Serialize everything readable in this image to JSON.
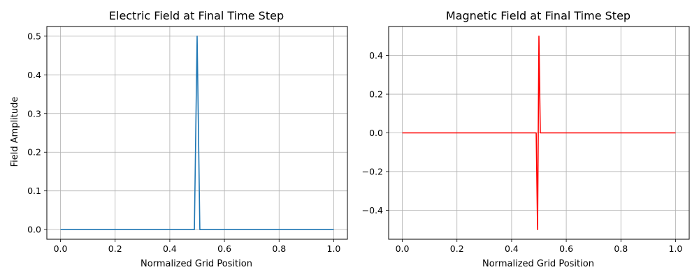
{
  "chart_data": [
    {
      "type": "line",
      "title": "Electric Field at Final Time Step",
      "xlabel": "Normalized Grid Position",
      "ylabel": "Field Amplitude",
      "xlim": [
        -0.05,
        1.05
      ],
      "ylim": [
        -0.025,
        0.525
      ],
      "xticks": [
        0.0,
        0.2,
        0.4,
        0.6,
        0.8,
        1.0
      ],
      "xtick_labels": [
        "0.0",
        "0.2",
        "0.4",
        "0.6",
        "0.8",
        "1.0"
      ],
      "yticks": [
        0.0,
        0.1,
        0.2,
        0.3,
        0.4,
        0.5
      ],
      "ytick_labels": [
        "0.0",
        "0.1",
        "0.2",
        "0.3",
        "0.4",
        "0.5"
      ],
      "grid": true,
      "series": [
        {
          "color": "#1f77b4",
          "x": [
            0.0,
            0.49,
            0.5,
            0.51,
            1.0
          ],
          "y": [
            0.0,
            0.0,
            0.5,
            0.0,
            0.0
          ]
        }
      ]
    },
    {
      "type": "line",
      "title": "Magnetic Field at Final Time Step",
      "xlabel": "Normalized Grid Position",
      "ylabel": "",
      "xlim": [
        -0.05,
        1.05
      ],
      "ylim": [
        -0.55,
        0.55
      ],
      "xticks": [
        0.0,
        0.2,
        0.4,
        0.6,
        0.8,
        1.0
      ],
      "xtick_labels": [
        "0.0",
        "0.2",
        "0.4",
        "0.6",
        "0.8",
        "1.0"
      ],
      "yticks": [
        -0.4,
        -0.2,
        0.0,
        0.2,
        0.4
      ],
      "ytick_labels": [
        "−0.4",
        "−0.2",
        "0.0",
        "0.2",
        "0.4"
      ],
      "grid": true,
      "series": [
        {
          "color": "#ff0000",
          "x": [
            0.0,
            0.49,
            0.495,
            0.5,
            0.505,
            1.0
          ],
          "y": [
            0.0,
            0.0,
            -0.5,
            0.5,
            0.0,
            0.0
          ]
        }
      ]
    }
  ]
}
